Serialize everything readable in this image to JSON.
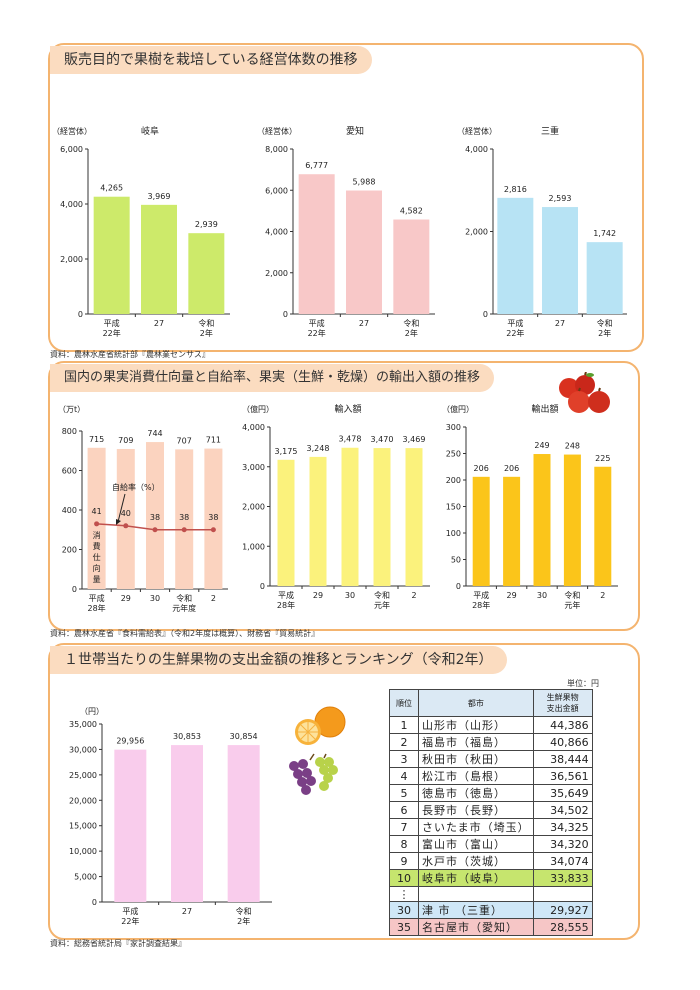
{
  "colors": {
    "gifu": "#cdea6a",
    "aichi": "#f8c8c8",
    "mie": "#b7e3f4",
    "consumption": "#fbd3bf",
    "rate_line": "#c0504d",
    "imports": "#fbf27c",
    "exports": "#fbc51a",
    "household": "#f9ccec",
    "highlight_gifu": "#c6e56e",
    "highlight_mie": "#cfe7f7",
    "highlight_aichi": "#f6c6c6",
    "border": "#f4b46f"
  },
  "section1": {
    "title": "販売目的で果樹を栽培している経営体数の推移",
    "source": "資料：農林水産省統計部『農林業センサス』"
  },
  "section2": {
    "title": "国内の果実消費仕向量と自給率、果実（生鮮・乾燥）の輸出入額の推移",
    "source": "資料：農林水産省『食料需給表』（令和2年度は概算）、財務省『貿易統計』",
    "icon": "apples-icon"
  },
  "section3": {
    "title": "１世帯当たりの生鮮果物の支出金額の推移とランキング（令和2年）",
    "source": "資料：総務省統計局『家計調査結果』",
    "icons": [
      "orange-icon",
      "grapes-icon"
    ]
  },
  "chart_data": [
    {
      "type": "bar",
      "title": "岐阜",
      "unit": "（経営体）",
      "categories": [
        "平成\n22年",
        "27",
        "令和\n2年"
      ],
      "values": [
        4265,
        3969,
        2939
      ],
      "labels": [
        "4,265",
        "3,969",
        "2,939"
      ],
      "ylim": [
        0,
        6000
      ],
      "ticks": [
        0,
        2000,
        4000,
        6000
      ],
      "tick_labels": [
        "0",
        "2,000",
        "4,000",
        "6,000"
      ],
      "color": "gifu"
    },
    {
      "type": "bar",
      "title": "愛知",
      "unit": "（経営体）",
      "categories": [
        "平成\n22年",
        "27",
        "令和\n2年"
      ],
      "values": [
        6777,
        5988,
        4582
      ],
      "labels": [
        "6,777",
        "5,988",
        "4,582"
      ],
      "ylim": [
        0,
        8000
      ],
      "ticks": [
        0,
        2000,
        4000,
        6000,
        8000
      ],
      "tick_labels": [
        "0",
        "2,000",
        "4,000",
        "6,000",
        "8,000"
      ],
      "color": "aichi"
    },
    {
      "type": "bar",
      "title": "三重",
      "unit": "（経営体）",
      "categories": [
        "平成\n22年",
        "27",
        "令和\n2年"
      ],
      "values": [
        2816,
        2593,
        1742
      ],
      "labels": [
        "2,816",
        "2,593",
        "1,742"
      ],
      "ylim": [
        0,
        4000
      ],
      "ticks": [
        0,
        2000,
        4000
      ],
      "tick_labels": [
        "0",
        "2,000",
        "4,000"
      ],
      "color": "mie"
    },
    {
      "type": "bar",
      "title": "",
      "unit": "（万t）",
      "categories": [
        "平成\n28年",
        "29",
        "30",
        "令和\n元年度",
        "2"
      ],
      "values": [
        715,
        709,
        744,
        707,
        711
      ],
      "labels": [
        "715",
        "709",
        "744",
        "707",
        "711"
      ],
      "ylim": [
        0,
        800
      ],
      "ticks": [
        0,
        200,
        400,
        600,
        800
      ],
      "tick_labels": [
        "0",
        "200",
        "400",
        "600",
        "800"
      ],
      "color": "consumption",
      "bar_caption": "消\n費\n仕\n向\n量",
      "line": {
        "name": "自給率（%）",
        "values": [
          41,
          40,
          38,
          38,
          38
        ],
        "labels": [
          "41",
          "40",
          "38",
          "38",
          "38"
        ],
        "plot_at": [
          330,
          320,
          300,
          300,
          300
        ],
        "color": "rate_line"
      }
    },
    {
      "type": "bar",
      "title": "輸入額",
      "unit": "（億円）",
      "categories": [
        "平成\n28年",
        "29",
        "30",
        "令和\n元年",
        "2"
      ],
      "values": [
        3175,
        3248,
        3478,
        3470,
        3469
      ],
      "labels": [
        "3,175",
        "3,248",
        "3,478",
        "3,470",
        "3,469"
      ],
      "ylim": [
        0,
        4000
      ],
      "ticks": [
        0,
        1000,
        2000,
        3000,
        4000
      ],
      "tick_labels": [
        "0",
        "1,000",
        "2,000",
        "3,000",
        "4,000"
      ],
      "color": "imports"
    },
    {
      "type": "bar",
      "title": "輸出額",
      "unit": "（億円）",
      "categories": [
        "平成\n28年",
        "29",
        "30",
        "令和\n元年",
        "2"
      ],
      "values": [
        206,
        206,
        249,
        248,
        225
      ],
      "labels": [
        "206",
        "206",
        "249",
        "248",
        "225"
      ],
      "ylim": [
        0,
        300
      ],
      "ticks": [
        0,
        50,
        100,
        150,
        200,
        250,
        300
      ],
      "tick_labels": [
        "0",
        "50",
        "100",
        "150",
        "200",
        "250",
        "300"
      ],
      "color": "exports"
    },
    {
      "type": "bar",
      "title": "",
      "unit": "（円）",
      "categories": [
        "平成\n22年",
        "27",
        "令和\n2年"
      ],
      "values": [
        29956,
        30853,
        30854
      ],
      "labels": [
        "29,956",
        "30,853",
        "30,854"
      ],
      "ylim": [
        0,
        35000
      ],
      "ticks": [
        0,
        5000,
        10000,
        15000,
        20000,
        25000,
        30000,
        35000
      ],
      "tick_labels": [
        "0",
        "5,000",
        "10,000",
        "15,000",
        "20,000",
        "25,000",
        "30,000",
        "35,000"
      ],
      "color": "household"
    },
    {
      "type": "table",
      "unit_label": "単位：円",
      "columns": [
        "順位",
        "都市",
        "生鮮果物\n支出金額"
      ],
      "rows": [
        {
          "rank": "1",
          "city": "山形市（山形）",
          "amount": "44,386",
          "hl": ""
        },
        {
          "rank": "2",
          "city": "福島市（福島）",
          "amount": "40,866",
          "hl": ""
        },
        {
          "rank": "3",
          "city": "秋田市（秋田）",
          "amount": "38,444",
          "hl": ""
        },
        {
          "rank": "4",
          "city": "松江市（島根）",
          "amount": "36,561",
          "hl": ""
        },
        {
          "rank": "5",
          "city": "徳島市（徳島）",
          "amount": "35,649",
          "hl": ""
        },
        {
          "rank": "6",
          "city": "長野市（長野）",
          "amount": "34,502",
          "hl": ""
        },
        {
          "rank": "7",
          "city": "さいたま市（埼玉）",
          "amount": "34,325",
          "hl": ""
        },
        {
          "rank": "8",
          "city": "富山市（富山）",
          "amount": "34,320",
          "hl": ""
        },
        {
          "rank": "9",
          "city": "水戸市（茨城）",
          "amount": "34,074",
          "hl": ""
        },
        {
          "rank": "10",
          "city": "岐阜市（岐阜）",
          "amount": "33,833",
          "hl": "highlight_gifu"
        },
        {
          "rank": "⋮",
          "city": "",
          "amount": "",
          "hl": ""
        },
        {
          "rank": "30",
          "city": "津 市 （三重）",
          "amount": "29,927",
          "hl": "highlight_mie"
        },
        {
          "rank": "35",
          "city": "名古屋市（愛知）",
          "amount": "28,555",
          "hl": "highlight_aichi"
        }
      ]
    }
  ]
}
